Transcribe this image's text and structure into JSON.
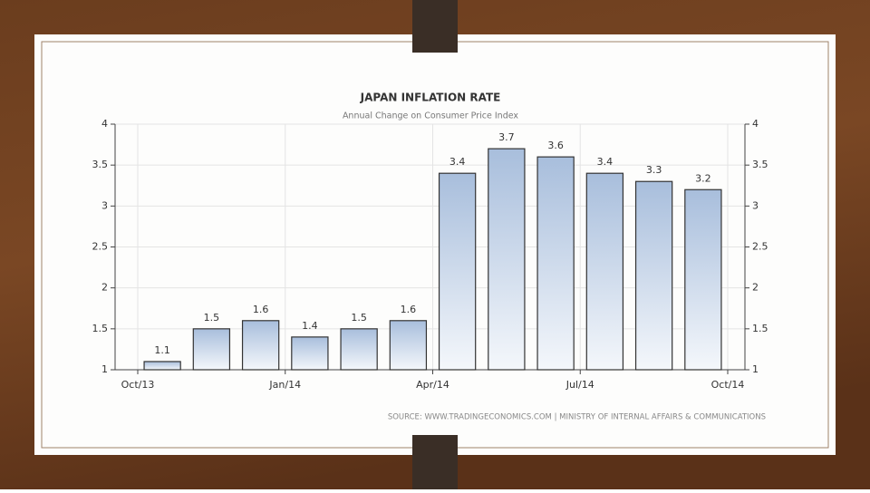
{
  "chart_data": {
    "type": "bar",
    "title": "JAPAN INFLATION RATE",
    "subtitle": "Annual Change on Consumer Price Index",
    "source": "SOURCE: WWW.TRADINGECONOMICS.COM | MINISTRY OF INTERNAL AFFAIRS & COMMUNICATIONS",
    "categories": [
      null,
      null,
      null,
      null,
      null,
      null,
      null,
      null,
      null,
      null,
      null,
      null
    ],
    "values": [
      1.1,
      1.5,
      1.6,
      1.4,
      1.5,
      1.6,
      3.4,
      3.7,
      3.6,
      3.4,
      3.3,
      3.2
    ],
    "xticks": [
      "Oct/13",
      "Jan/14",
      "Apr/14",
      "Jul/14",
      "Oct/14"
    ],
    "ylim": [
      1,
      4
    ],
    "yticks": [
      1,
      1.5,
      2,
      2.5,
      3,
      3.5,
      4
    ],
    "grid": true
  }
}
